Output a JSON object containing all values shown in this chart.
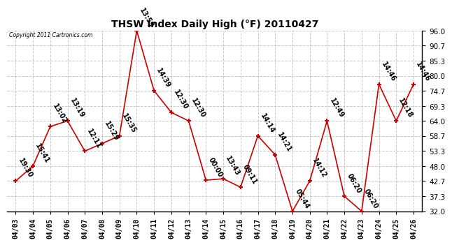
{
  "title": "THSW Index Daily High (°F) 20110427",
  "copyright": "Copyright 2011 Cartronics.com",
  "background_color": "#ffffff",
  "plot_bg_color": "#ffffff",
  "grid_color": "#bbbbbb",
  "line_color": "#cc0000",
  "marker_color": "#cc0000",
  "ylim": [
    32.0,
    96.0
  ],
  "yticks": [
    32.0,
    37.3,
    42.7,
    48.0,
    53.3,
    58.7,
    64.0,
    69.3,
    74.7,
    80.0,
    85.3,
    90.7,
    96.0
  ],
  "dates": [
    "04/03",
    "04/04",
    "04/05",
    "04/06",
    "04/07",
    "04/08",
    "04/09",
    "04/10",
    "04/11",
    "04/12",
    "04/13",
    "04/14",
    "04/15",
    "04/16",
    "04/17",
    "04/18",
    "04/19",
    "04/20",
    "04/21",
    "04/22",
    "04/23",
    "04/24",
    "04/25",
    "04/26"
  ],
  "values": [
    42.7,
    48.0,
    62.0,
    64.0,
    53.3,
    56.0,
    58.7,
    96.0,
    74.7,
    67.0,
    64.0,
    43.0,
    43.5,
    40.5,
    58.7,
    52.0,
    32.0,
    42.7,
    64.0,
    37.3,
    32.0,
    77.0,
    64.0,
    77.0
  ],
  "labels": [
    "19:30",
    "15:41",
    "13:02",
    "13:19",
    "12:11",
    "15:29",
    "15:35",
    "13:59",
    "14:39",
    "12:30",
    "12:30",
    "00:00",
    "13:43",
    "09:11",
    "14:14",
    "14:21",
    "05:44",
    "14:12",
    "12:49",
    "06:20",
    "06:20",
    "14:46",
    "12:18",
    "14:46"
  ],
  "label_rotation": -60,
  "label_fontsize": 7
}
